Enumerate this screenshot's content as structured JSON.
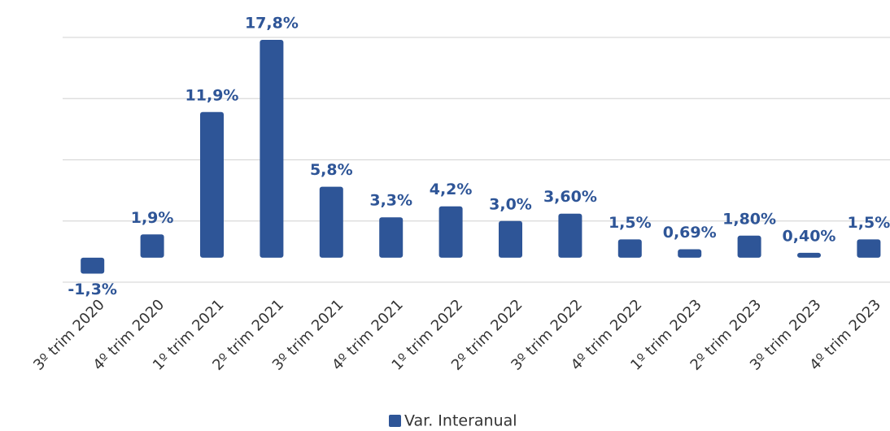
{
  "chart_data": {
    "type": "bar",
    "categories": [
      "3º trim 2020",
      "4º trim 2020",
      "1º trim 2021",
      "2º trim 2021",
      "3º trim 2021",
      "4º trim 2021",
      "1º trim 2022",
      "2º trim 2022",
      "3º trim 2022",
      "4º trim 2022",
      "1º trim 2023",
      "2º trim 2023",
      "3º trim 2023",
      "4º trim 2023"
    ],
    "series": [
      {
        "name": "Var. Interanual",
        "color": "#2e5597",
        "values": [
          -1.3,
          1.9,
          11.9,
          17.8,
          5.8,
          3.3,
          4.2,
          3.0,
          3.6,
          1.5,
          0.69,
          1.8,
          0.4,
          1.5
        ],
        "value_labels": [
          "-1,3%",
          "1,9%",
          "11,9%",
          "17,8%",
          "5,8%",
          "3,3%",
          "4,2%",
          "3,0%",
          "3,60%",
          "1,5%",
          "0,69%",
          "1,80%",
          "0,40%",
          "1,5%"
        ]
      }
    ],
    "ylim": [
      -2,
      18
    ],
    "yticks": [
      -2,
      3,
      8,
      13,
      18
    ],
    "grid": true,
    "legend": "bottom"
  }
}
